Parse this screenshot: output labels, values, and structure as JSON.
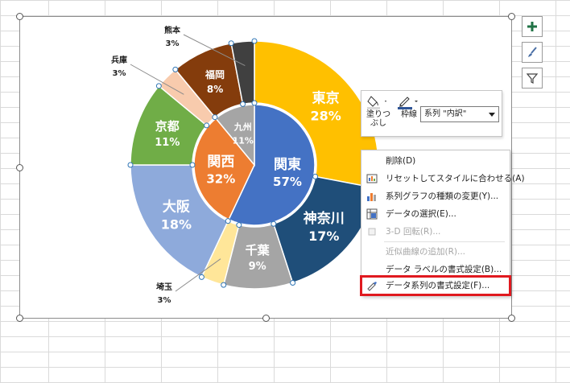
{
  "chart": {
    "outer_ring": [
      {
        "label": "東京",
        "percent": "28%",
        "value": 28,
        "color": "#ffc000",
        "text_color": "#ffffff"
      },
      {
        "label": "神奈川",
        "percent": "17%",
        "value": 17,
        "color": "#1f4e79",
        "text_color": "#ffffff"
      },
      {
        "label": "千葉",
        "percent": "9%",
        "value": 9,
        "color": "#a5a5a5",
        "text_color": "#ffffff"
      },
      {
        "label": "埼玉",
        "percent": "3%",
        "value": 3,
        "color": "#ffe699",
        "text_color": "#222222"
      },
      {
        "label": "大阪",
        "percent": "18%",
        "value": 18,
        "color": "#8eaadb",
        "text_color": "#ffffff"
      },
      {
        "label": "京都",
        "percent": "11%",
        "value": 11,
        "color": "#70ad47",
        "text_color": "#ffffff"
      },
      {
        "label": "兵庫",
        "percent": "3%",
        "value": 3,
        "color": "#f8cbad",
        "text_color": "#222222"
      },
      {
        "label": "福岡",
        "percent": "8%",
        "value": 8,
        "color": "#843c0c",
        "text_color": "#ffffff"
      },
      {
        "label": "熊本",
        "percent": "3%",
        "value": 3,
        "color": "#404040",
        "text_color": "#222222"
      }
    ],
    "inner_ring": [
      {
        "label": "関東",
        "percent": "57%",
        "value": 57,
        "color": "#4472c4",
        "text_color": "#ffffff"
      },
      {
        "label": "関西",
        "percent": "32%",
        "value": 32,
        "color": "#ed7d31",
        "text_color": "#ffffff"
      },
      {
        "label": "九州",
        "percent": "11%",
        "value": 11,
        "color": "#a5a5a5",
        "text_color": "#ffffff"
      }
    ]
  },
  "side_buttons": [
    {
      "name": "chart-elements-button",
      "icon": "plus-icon"
    },
    {
      "name": "chart-styles-button",
      "icon": "brush-icon"
    },
    {
      "name": "chart-filters-button",
      "icon": "filter-icon"
    }
  ],
  "mini_toolbar": {
    "fill_label": "塗りつぶし",
    "fill_label_l1": "塗りつ",
    "fill_label_l2": "ぶし",
    "outline_label": "枠線",
    "series_select": "系列 \"内訳\""
  },
  "context_menu": {
    "items": [
      {
        "label": "削除(D)",
        "disabled": false,
        "icon": ""
      },
      {
        "label": "リセットしてスタイルに合わせる(A)",
        "disabled": false,
        "icon": "reset-style-icon"
      },
      {
        "label": "系列グラフの種類の変更(Y)...",
        "disabled": false,
        "icon": "chart-type-icon"
      },
      {
        "label": "データの選択(E)...",
        "disabled": false,
        "icon": "select-data-icon"
      },
      {
        "label": "3-D 回転(R)...",
        "disabled": true,
        "icon": "rotate-3d-icon"
      },
      {
        "label": "近似曲線の追加(R)...",
        "disabled": true,
        "icon": ""
      },
      {
        "label": "データ ラベルの書式設定(B)...",
        "disabled": false,
        "icon": ""
      },
      {
        "label": "データ系列の書式設定(F)...",
        "disabled": false,
        "icon": "format-series-icon"
      }
    ]
  },
  "colors": {
    "highlight_border": "#e0191f",
    "toolbar_icon_green": "#217346"
  }
}
